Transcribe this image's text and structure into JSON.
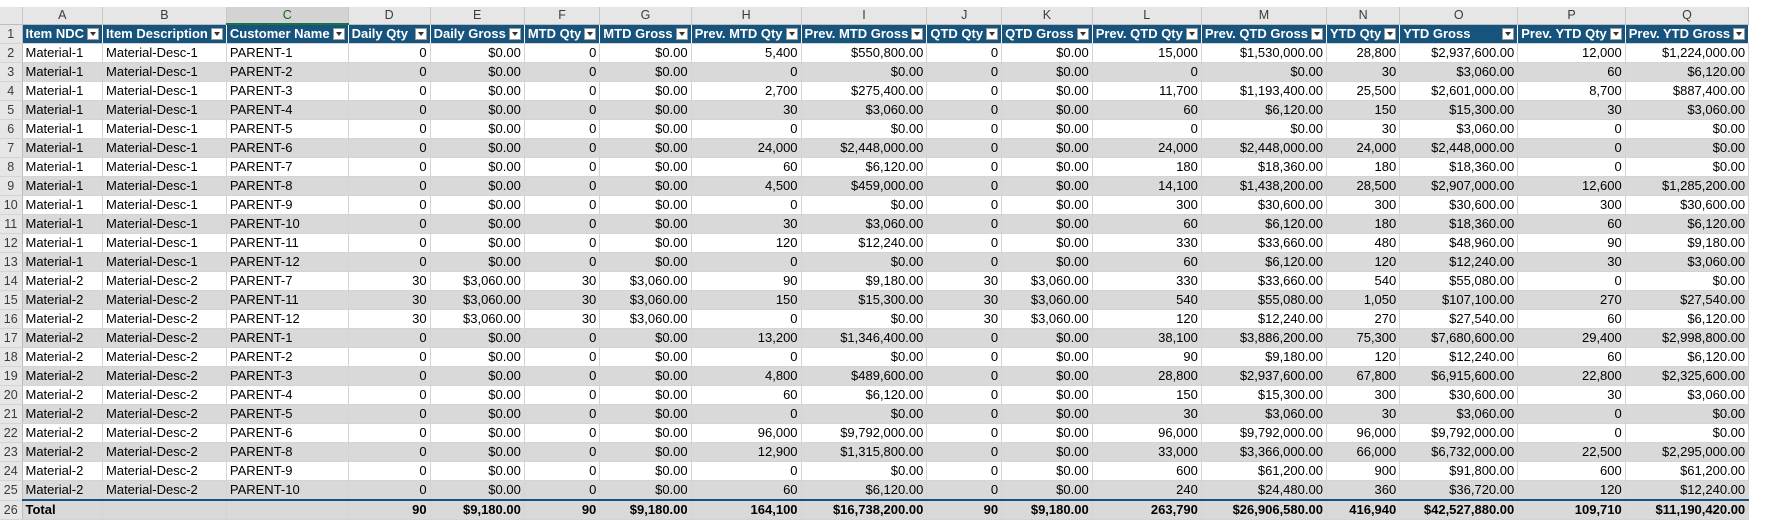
{
  "columns": [
    "A",
    "B",
    "C",
    "D",
    "E",
    "F",
    "G",
    "H",
    "I",
    "J",
    "K",
    "L",
    "M",
    "N",
    "O",
    "P",
    "Q"
  ],
  "active_column": "C",
  "headers": [
    "Item NDC",
    "Item Description",
    "Customer Name",
    "Daily Qty",
    "Daily Gross",
    "MTD Qty",
    "MTD Gross",
    "Prev. MTD Qty",
    "Prev. MTD Gross",
    "QTD Qty",
    "QTD Gross",
    "Prev. QTD Qty",
    "Prev. QTD Gross",
    "YTD Qty",
    "YTD Gross",
    "Prev. YTD Qty",
    "Prev. YTD Gross"
  ],
  "rows": [
    [
      "Material-1",
      "Material-Desc-1",
      "PARENT-1",
      "0",
      "$0.00",
      "0",
      "$0.00",
      "5,400",
      "$550,800.00",
      "0",
      "$0.00",
      "15,000",
      "$1,530,000.00",
      "28,800",
      "$2,937,600.00",
      "12,000",
      "$1,224,000.00"
    ],
    [
      "Material-1",
      "Material-Desc-1",
      "PARENT-2",
      "0",
      "$0.00",
      "0",
      "$0.00",
      "0",
      "$0.00",
      "0",
      "$0.00",
      "0",
      "$0.00",
      "30",
      "$3,060.00",
      "60",
      "$6,120.00"
    ],
    [
      "Material-1",
      "Material-Desc-1",
      "PARENT-3",
      "0",
      "$0.00",
      "0",
      "$0.00",
      "2,700",
      "$275,400.00",
      "0",
      "$0.00",
      "11,700",
      "$1,193,400.00",
      "25,500",
      "$2,601,000.00",
      "8,700",
      "$887,400.00"
    ],
    [
      "Material-1",
      "Material-Desc-1",
      "PARENT-4",
      "0",
      "$0.00",
      "0",
      "$0.00",
      "30",
      "$3,060.00",
      "0",
      "$0.00",
      "60",
      "$6,120.00",
      "150",
      "$15,300.00",
      "30",
      "$3,060.00"
    ],
    [
      "Material-1",
      "Material-Desc-1",
      "PARENT-5",
      "0",
      "$0.00",
      "0",
      "$0.00",
      "0",
      "$0.00",
      "0",
      "$0.00",
      "0",
      "$0.00",
      "30",
      "$3,060.00",
      "0",
      "$0.00"
    ],
    [
      "Material-1",
      "Material-Desc-1",
      "PARENT-6",
      "0",
      "$0.00",
      "0",
      "$0.00",
      "24,000",
      "$2,448,000.00",
      "0",
      "$0.00",
      "24,000",
      "$2,448,000.00",
      "24,000",
      "$2,448,000.00",
      "0",
      "$0.00"
    ],
    [
      "Material-1",
      "Material-Desc-1",
      "PARENT-7",
      "0",
      "$0.00",
      "0",
      "$0.00",
      "60",
      "$6,120.00",
      "0",
      "$0.00",
      "180",
      "$18,360.00",
      "180",
      "$18,360.00",
      "0",
      "$0.00"
    ],
    [
      "Material-1",
      "Material-Desc-1",
      "PARENT-8",
      "0",
      "$0.00",
      "0",
      "$0.00",
      "4,500",
      "$459,000.00",
      "0",
      "$0.00",
      "14,100",
      "$1,438,200.00",
      "28,500",
      "$2,907,000.00",
      "12,600",
      "$1,285,200.00"
    ],
    [
      "Material-1",
      "Material-Desc-1",
      "PARENT-9",
      "0",
      "$0.00",
      "0",
      "$0.00",
      "0",
      "$0.00",
      "0",
      "$0.00",
      "300",
      "$30,600.00",
      "300",
      "$30,600.00",
      "300",
      "$30,600.00"
    ],
    [
      "Material-1",
      "Material-Desc-1",
      "PARENT-10",
      "0",
      "$0.00",
      "0",
      "$0.00",
      "30",
      "$3,060.00",
      "0",
      "$0.00",
      "60",
      "$6,120.00",
      "180",
      "$18,360.00",
      "60",
      "$6,120.00"
    ],
    [
      "Material-1",
      "Material-Desc-1",
      "PARENT-11",
      "0",
      "$0.00",
      "0",
      "$0.00",
      "120",
      "$12,240.00",
      "0",
      "$0.00",
      "330",
      "$33,660.00",
      "480",
      "$48,960.00",
      "90",
      "$9,180.00"
    ],
    [
      "Material-1",
      "Material-Desc-1",
      "PARENT-12",
      "0",
      "$0.00",
      "0",
      "$0.00",
      "0",
      "$0.00",
      "0",
      "$0.00",
      "60",
      "$6,120.00",
      "120",
      "$12,240.00",
      "30",
      "$3,060.00"
    ],
    [
      "Material-2",
      "Material-Desc-2",
      "PARENT-7",
      "30",
      "$3,060.00",
      "30",
      "$3,060.00",
      "90",
      "$9,180.00",
      "30",
      "$3,060.00",
      "330",
      "$33,660.00",
      "540",
      "$55,080.00",
      "0",
      "$0.00"
    ],
    [
      "Material-2",
      "Material-Desc-2",
      "PARENT-11",
      "30",
      "$3,060.00",
      "30",
      "$3,060.00",
      "150",
      "$15,300.00",
      "30",
      "$3,060.00",
      "540",
      "$55,080.00",
      "1,050",
      "$107,100.00",
      "270",
      "$27,540.00"
    ],
    [
      "Material-2",
      "Material-Desc-2",
      "PARENT-12",
      "30",
      "$3,060.00",
      "30",
      "$3,060.00",
      "0",
      "$0.00",
      "30",
      "$3,060.00",
      "120",
      "$12,240.00",
      "270",
      "$27,540.00",
      "60",
      "$6,120.00"
    ],
    [
      "Material-2",
      "Material-Desc-2",
      "PARENT-1",
      "0",
      "$0.00",
      "0",
      "$0.00",
      "13,200",
      "$1,346,400.00",
      "0",
      "$0.00",
      "38,100",
      "$3,886,200.00",
      "75,300",
      "$7,680,600.00",
      "29,400",
      "$2,998,800.00"
    ],
    [
      "Material-2",
      "Material-Desc-2",
      "PARENT-2",
      "0",
      "$0.00",
      "0",
      "$0.00",
      "0",
      "$0.00",
      "0",
      "$0.00",
      "90",
      "$9,180.00",
      "120",
      "$12,240.00",
      "60",
      "$6,120.00"
    ],
    [
      "Material-2",
      "Material-Desc-2",
      "PARENT-3",
      "0",
      "$0.00",
      "0",
      "$0.00",
      "4,800",
      "$489,600.00",
      "0",
      "$0.00",
      "28,800",
      "$2,937,600.00",
      "67,800",
      "$6,915,600.00",
      "22,800",
      "$2,325,600.00"
    ],
    [
      "Material-2",
      "Material-Desc-2",
      "PARENT-4",
      "0",
      "$0.00",
      "0",
      "$0.00",
      "60",
      "$6,120.00",
      "0",
      "$0.00",
      "150",
      "$15,300.00",
      "300",
      "$30,600.00",
      "30",
      "$3,060.00"
    ],
    [
      "Material-2",
      "Material-Desc-2",
      "PARENT-5",
      "0",
      "$0.00",
      "0",
      "$0.00",
      "0",
      "$0.00",
      "0",
      "$0.00",
      "30",
      "$3,060.00",
      "30",
      "$3,060.00",
      "0",
      "$0.00"
    ],
    [
      "Material-2",
      "Material-Desc-2",
      "PARENT-6",
      "0",
      "$0.00",
      "0",
      "$0.00",
      "96,000",
      "$9,792,000.00",
      "0",
      "$0.00",
      "96,000",
      "$9,792,000.00",
      "96,000",
      "$9,792,000.00",
      "0",
      "$0.00"
    ],
    [
      "Material-2",
      "Material-Desc-2",
      "PARENT-8",
      "0",
      "$0.00",
      "0",
      "$0.00",
      "12,900",
      "$1,315,800.00",
      "0",
      "$0.00",
      "33,000",
      "$3,366,000.00",
      "66,000",
      "$6,732,000.00",
      "22,500",
      "$2,295,000.00"
    ],
    [
      "Material-2",
      "Material-Desc-2",
      "PARENT-9",
      "0",
      "$0.00",
      "0",
      "$0.00",
      "0",
      "$0.00",
      "0",
      "$0.00",
      "600",
      "$61,200.00",
      "900",
      "$91,800.00",
      "600",
      "$61,200.00"
    ],
    [
      "Material-2",
      "Material-Desc-2",
      "PARENT-10",
      "0",
      "$0.00",
      "0",
      "$0.00",
      "60",
      "$6,120.00",
      "0",
      "$0.00",
      "240",
      "$24,480.00",
      "360",
      "$36,720.00",
      "120",
      "$12,240.00"
    ]
  ],
  "total": [
    "Total",
    "",
    "",
    "90",
    "$9,180.00",
    "90",
    "$9,180.00",
    "164,100",
    "$16,738,200.00",
    "90",
    "$9,180.00",
    "263,790",
    "$26,906,580.00",
    "416,940",
    "$42,527,880.00",
    "109,710",
    "$11,190,420.00"
  ],
  "icons": {
    "filter": "filter-dropdown-icon"
  },
  "colors": {
    "header_bg": "#17547d",
    "band": "#d9d9d9",
    "selection": "#1a7343"
  }
}
